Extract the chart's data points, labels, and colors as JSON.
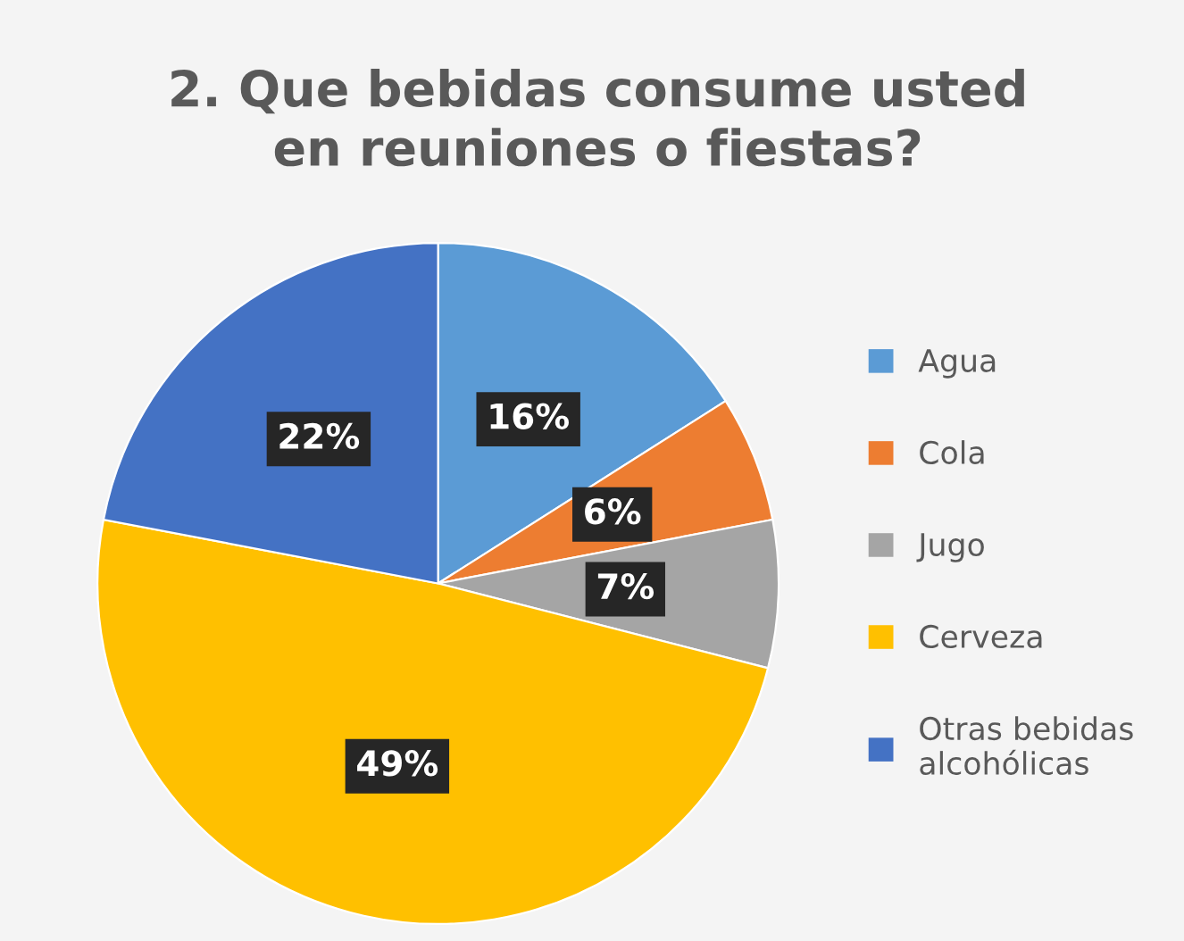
{
  "chart_data": {
    "type": "pie",
    "title": "2. Que bebidas consume usted\nen reuniones o fiestas?",
    "categories": [
      "Agua",
      "Cola",
      "Jugo",
      "Cerveza",
      "Otras bebidas\nalcohólicas"
    ],
    "values": [
      16,
      6,
      7,
      49,
      22
    ],
    "colors": [
      "#5b9bd5",
      "#ed7d31",
      "#a5a5a5",
      "#ffc000",
      "#4472c4"
    ],
    "value_labels": [
      "16%",
      "6%",
      "7%",
      "49%",
      "22%"
    ],
    "legend": "right"
  }
}
